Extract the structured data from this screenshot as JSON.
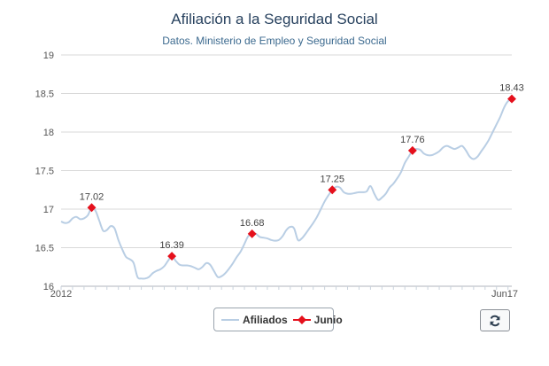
{
  "title": "Afiliación a la Seguridad Social",
  "subtitle": "Datos. Ministerio de Empleo y Seguridad Social",
  "legend": {
    "series_a": "Afiliados",
    "series_b": "Junio"
  },
  "icons": {
    "refresh": "refresh-icon"
  },
  "colors": {
    "line": "#b9cee4",
    "marker": "#e5101c",
    "grid": "#d9d9d9",
    "title": "#27415e",
    "subtitle": "#3c6a8f"
  },
  "chart_data": {
    "type": "line",
    "y_ticks": [
      16,
      16.5,
      17,
      17.5,
      18,
      18.5,
      19
    ],
    "ylim": [
      16,
      19
    ],
    "grid": true,
    "x_labels": {
      "start": "2012",
      "end": "Jun17"
    },
    "legend_placement": "bottom-center",
    "series": [
      {
        "name": "Afiliados",
        "values": [
          16.84,
          16.82,
          16.83,
          16.88,
          16.9,
          16.87,
          16.88,
          16.92,
          17.02,
          16.98,
          16.85,
          16.72,
          16.73,
          16.78,
          16.75,
          16.6,
          16.48,
          16.38,
          16.35,
          16.3,
          16.12,
          16.1,
          16.1,
          16.12,
          16.17,
          16.2,
          16.22,
          16.26,
          16.33,
          16.39,
          16.33,
          16.28,
          16.27,
          16.27,
          16.26,
          16.24,
          16.22,
          16.25,
          16.3,
          16.28,
          16.2,
          16.12,
          16.13,
          16.17,
          16.23,
          16.3,
          16.38,
          16.45,
          16.55,
          16.65,
          16.68,
          16.68,
          16.64,
          16.63,
          16.62,
          16.6,
          16.59,
          16.6,
          16.65,
          16.73,
          16.77,
          16.75,
          16.6,
          16.62,
          16.68,
          16.75,
          16.82,
          16.9,
          17.0,
          17.1,
          17.18,
          17.25,
          17.29,
          17.28,
          17.22,
          17.2,
          17.2,
          17.21,
          17.22,
          17.22,
          17.23,
          17.3,
          17.2,
          17.12,
          17.15,
          17.2,
          17.28,
          17.33,
          17.4,
          17.48,
          17.6,
          17.68,
          17.76,
          17.78,
          17.77,
          17.72,
          17.7,
          17.7,
          17.72,
          17.75,
          17.8,
          17.82,
          17.8,
          17.78,
          17.8,
          17.82,
          17.76,
          17.68,
          17.65,
          17.68,
          17.75,
          17.82,
          17.9,
          18.0,
          18.1,
          18.2,
          18.32,
          18.4,
          18.43
        ]
      },
      {
        "name": "Junio",
        "points": [
          {
            "index": 8,
            "value": 17.02
          },
          {
            "index": 29,
            "value": 16.39
          },
          {
            "index": 50,
            "value": 16.68
          },
          {
            "index": 71,
            "value": 17.25
          },
          {
            "index": 92,
            "value": 17.76
          },
          {
            "index": 118,
            "value": 18.43
          }
        ]
      }
    ]
  }
}
